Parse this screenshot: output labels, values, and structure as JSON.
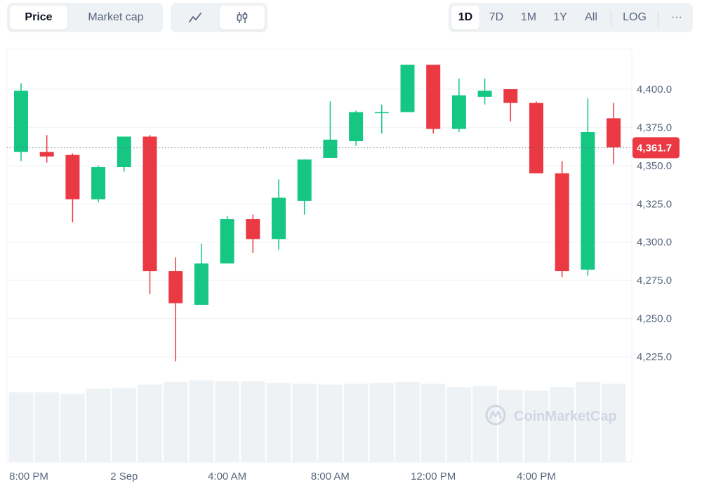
{
  "toolbar": {
    "metric_tabs": [
      {
        "label": "Price",
        "active": true
      },
      {
        "label": "Market cap",
        "active": false
      }
    ],
    "chart_type_icons": [
      {
        "icon": "line-chart-icon",
        "active": false
      },
      {
        "icon": "candlestick-icon",
        "active": true
      }
    ],
    "ranges": [
      {
        "label": "1D",
        "active": true
      },
      {
        "label": "7D",
        "active": false
      },
      {
        "label": "1M",
        "active": false
      },
      {
        "label": "1Y",
        "active": false
      },
      {
        "label": "All",
        "active": false
      }
    ],
    "log_label": "LOG",
    "more_label": "···"
  },
  "watermark": "CoinMarketCap",
  "current_price_label": "4,361.7",
  "colors": {
    "up": "#16c784",
    "down": "#ea3943",
    "volume": "#eff2f5",
    "grid": "#eff2f5",
    "tag": "#ea3943"
  },
  "chart_data": {
    "type": "candlestick",
    "ylim": [
      4210,
      4420
    ],
    "y_ticks": [
      4225,
      4250,
      4275,
      4300,
      4325,
      4350,
      4375,
      4400
    ],
    "y_tick_labels": [
      "4,225.0",
      "4,250.0",
      "4,275.0",
      "4,300.0",
      "4,325.0",
      "4,350.0",
      "4,375.0",
      "4,400.0"
    ],
    "x_tick_labels": [
      "8:00 PM",
      "2 Sep",
      "4:00 AM",
      "8:00 AM",
      "12:00 PM",
      "4:00 PM"
    ],
    "x_tick_candle_index": [
      0,
      4,
      8,
      12,
      16,
      20
    ],
    "current_price": 4361.7,
    "candles": [
      {
        "open": 4359,
        "high": 4404,
        "low": 4353,
        "close": 4399
      },
      {
        "open": 4359,
        "high": 4370,
        "low": 4352,
        "close": 4356
      },
      {
        "open": 4357,
        "high": 4358,
        "low": 4313,
        "close": 4328
      },
      {
        "open": 4328,
        "high": 4350,
        "low": 4326,
        "close": 4349
      },
      {
        "open": 4349,
        "high": 4369,
        "low": 4346,
        "close": 4369
      },
      {
        "open": 4369,
        "high": 4370,
        "low": 4266,
        "close": 4281
      },
      {
        "open": 4281,
        "high": 4290,
        "low": 4222,
        "close": 4260
      },
      {
        "open": 4259,
        "high": 4299,
        "low": 4259,
        "close": 4286
      },
      {
        "open": 4286,
        "high": 4317,
        "low": 4286,
        "close": 4315
      },
      {
        "open": 4315,
        "high": 4318,
        "low": 4293,
        "close": 4302
      },
      {
        "open": 4302,
        "high": 4341,
        "low": 4295,
        "close": 4329
      },
      {
        "open": 4327,
        "high": 4354,
        "low": 4318,
        "close": 4354
      },
      {
        "open": 4355,
        "high": 4392,
        "low": 4355,
        "close": 4367
      },
      {
        "open": 4366,
        "high": 4386,
        "low": 4363,
        "close": 4385
      },
      {
        "open": 4385,
        "high": 4390,
        "low": 4371,
        "close": 4385
      },
      {
        "open": 4385,
        "high": 4416,
        "low": 4385,
        "close": 4416
      },
      {
        "open": 4416,
        "high": 4416,
        "low": 4371,
        "close": 4374
      },
      {
        "open": 4374,
        "high": 4407,
        "low": 4372,
        "close": 4396
      },
      {
        "open": 4395,
        "high": 4407,
        "low": 4390,
        "close": 4399
      },
      {
        "open": 4400,
        "high": 4400,
        "low": 4379,
        "close": 4391
      },
      {
        "open": 4391,
        "high": 4392,
        "low": 4345,
        "close": 4345
      },
      {
        "open": 4345,
        "high": 4353,
        "low": 4277,
        "close": 4281
      },
      {
        "open": 4282,
        "high": 4394,
        "low": 4278,
        "close": 4372
      },
      {
        "open": 4381,
        "high": 4391,
        "low": 4351,
        "close": 4362
      }
    ],
    "volumes": [
      0.83,
      0.83,
      0.81,
      0.87,
      0.88,
      0.92,
      0.95,
      0.97,
      0.96,
      0.96,
      0.94,
      0.93,
      0.92,
      0.93,
      0.94,
      0.95,
      0.93,
      0.89,
      0.9,
      0.86,
      0.85,
      0.89,
      0.95,
      0.93
    ]
  }
}
